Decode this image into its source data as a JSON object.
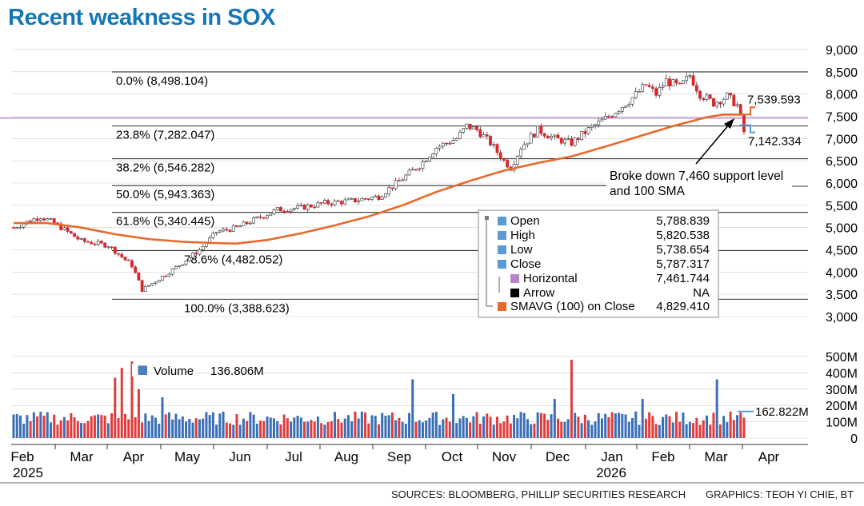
{
  "title": "Recent weakness in SOX",
  "sources": "SOURCES: BLOOMBERG, PHILLIP SECURITIES RESEARCH",
  "graphics_credit": "GRAPHICS: TEOH YI CHIE, BT",
  "chart_data": [
    {
      "type": "candlestick",
      "title": "Recent weakness in SOX",
      "y_ticks": [
        3000,
        3500,
        4000,
        4500,
        5000,
        5500,
        6000,
        6500,
        7000,
        7500,
        8000,
        8500,
        9000
      ],
      "y_tick_labels": [
        "3,000",
        "3,500",
        "4,000",
        "4,500",
        "5,000",
        "5,500",
        "6,000",
        "6,500",
        "7,000",
        "7,500",
        "8,000",
        "8,500",
        "9,000"
      ],
      "ylim": [
        3000,
        9000
      ],
      "x_labels": [
        "Feb",
        "Mar",
        "Apr",
        "May",
        "Jun",
        "Jul",
        "Aug",
        "Sep",
        "Oct",
        "Nov",
        "Dec",
        "Jan",
        "Feb",
        "Mar",
        "Apr"
      ],
      "x_years": [
        "2025",
        "2026"
      ],
      "fibonacci": [
        {
          "label": "0.0% (8,498.104)",
          "value": 8498.104
        },
        {
          "label": "23.8% (7,282.047)",
          "value": 7282.047
        },
        {
          "label": "38.2% (6,546.282)",
          "value": 6546.282
        },
        {
          "label": "50.0% (5,943.363)",
          "value": 5943.363
        },
        {
          "label": "61.8% (5,340.445)",
          "value": 5340.445
        },
        {
          "label": "78.6% (4,482.052)",
          "value": 4482.052
        },
        {
          "label": "100.0% (3,388.623)",
          "value": 3388.623
        }
      ],
      "horizontal_level": 7461.744,
      "sma_last_label": "7,539.593",
      "last_close_label": "7,142.334",
      "annotation": [
        "Broke down 7,460 support level",
        "and 100 SMA"
      ],
      "legend": [
        {
          "name": "Open",
          "value": "5,788.839",
          "color": "#5b9bd5"
        },
        {
          "name": "High",
          "value": "5,820.538",
          "color": "#5b9bd5"
        },
        {
          "name": "Low",
          "value": "5,738.654",
          "color": "#5b9bd5"
        },
        {
          "name": "Close",
          "value": "5,787.317",
          "color": "#5b9bd5"
        },
        {
          "name": "Horizontal",
          "value": "7,461.744",
          "color": "#b784c7"
        },
        {
          "name": "Arrow",
          "value": "NA",
          "color": "#000000"
        },
        {
          "name": "SMAVG (100) on Close",
          "value": "4,829.410",
          "color": "#e8692a"
        }
      ],
      "price_path": [
        [
          0,
          5000
        ],
        [
          8,
          5250
        ],
        [
          12,
          5100
        ],
        [
          20,
          4700
        ],
        [
          28,
          4600
        ],
        [
          35,
          4150
        ],
        [
          38,
          3600
        ],
        [
          41,
          3750
        ],
        [
          48,
          4100
        ],
        [
          55,
          4500
        ],
        [
          60,
          4900
        ],
        [
          66,
          5000
        ],
        [
          72,
          5200
        ],
        [
          78,
          5400
        ],
        [
          85,
          5450
        ],
        [
          92,
          5550
        ],
        [
          100,
          5600
        ],
        [
          108,
          5700
        ],
        [
          115,
          6100
        ],
        [
          120,
          6400
        ],
        [
          125,
          6800
        ],
        [
          131,
          7000
        ],
        [
          134,
          7280
        ],
        [
          137,
          7200
        ],
        [
          141,
          6900
        ],
        [
          145,
          6500
        ],
        [
          147,
          6350
        ],
        [
          150,
          6800
        ],
        [
          155,
          7200
        ],
        [
          160,
          7000
        ],
        [
          165,
          6900
        ],
        [
          170,
          7200
        ],
        [
          176,
          7500
        ],
        [
          182,
          7850
        ],
        [
          187,
          8200
        ],
        [
          190,
          8000
        ],
        [
          193,
          8300
        ],
        [
          197,
          8150
        ],
        [
          200,
          8420
        ],
        [
          203,
          8000
        ],
        [
          207,
          7800
        ],
        [
          211,
          7950
        ],
        [
          214,
          7750
        ],
        [
          216,
          7150
        ]
      ],
      "sma_path": [
        [
          0,
          5100
        ],
        [
          10,
          5100
        ],
        [
          20,
          5000
        ],
        [
          30,
          4850
        ],
        [
          40,
          4740
        ],
        [
          50,
          4680
        ],
        [
          60,
          4650
        ],
        [
          66,
          4640
        ],
        [
          75,
          4720
        ],
        [
          85,
          4870
        ],
        [
          95,
          5050
        ],
        [
          105,
          5250
        ],
        [
          115,
          5500
        ],
        [
          125,
          5800
        ],
        [
          135,
          6050
        ],
        [
          145,
          6280
        ],
        [
          155,
          6450
        ],
        [
          165,
          6600
        ],
        [
          175,
          6820
        ],
        [
          185,
          7050
        ],
        [
          195,
          7280
        ],
        [
          205,
          7480
        ],
        [
          210,
          7540
        ],
        [
          216,
          7540
        ]
      ]
    },
    {
      "type": "bar",
      "name": "Volume",
      "legend_value": "136.806M",
      "y_ticks": [
        0,
        100,
        200,
        300,
        400,
        500
      ],
      "y_tick_labels": [
        "0",
        "100M",
        "200M",
        "300M",
        "400M",
        "500M"
      ],
      "ylim": [
        0,
        500
      ],
      "unit": "M",
      "last_value_label": "162.822M",
      "typical_range": [
        80,
        200
      ],
      "spikes": [
        {
          "index": 30,
          "value": 370
        },
        {
          "index": 32,
          "value": 430
        },
        {
          "index": 35,
          "value": 470
        },
        {
          "index": 37,
          "value": 300
        },
        {
          "index": 44,
          "value": 250
        },
        {
          "index": 118,
          "value": 360
        },
        {
          "index": 130,
          "value": 270
        },
        {
          "index": 165,
          "value": 480
        },
        {
          "index": 160,
          "value": 240
        },
        {
          "index": 208,
          "value": 360
        },
        {
          "index": 186,
          "value": 240
        }
      ],
      "colors": {
        "up": "#3a6fb6",
        "down": "#e23b3b"
      }
    }
  ],
  "colors": {
    "title": "#1577b6",
    "up_candle": "#ffffff",
    "down_candle": "#d9262c",
    "sma": "#e8692a",
    "horizontal": "#b784c7",
    "fib_line": "#333333",
    "grid": "#cfcfcf"
  }
}
